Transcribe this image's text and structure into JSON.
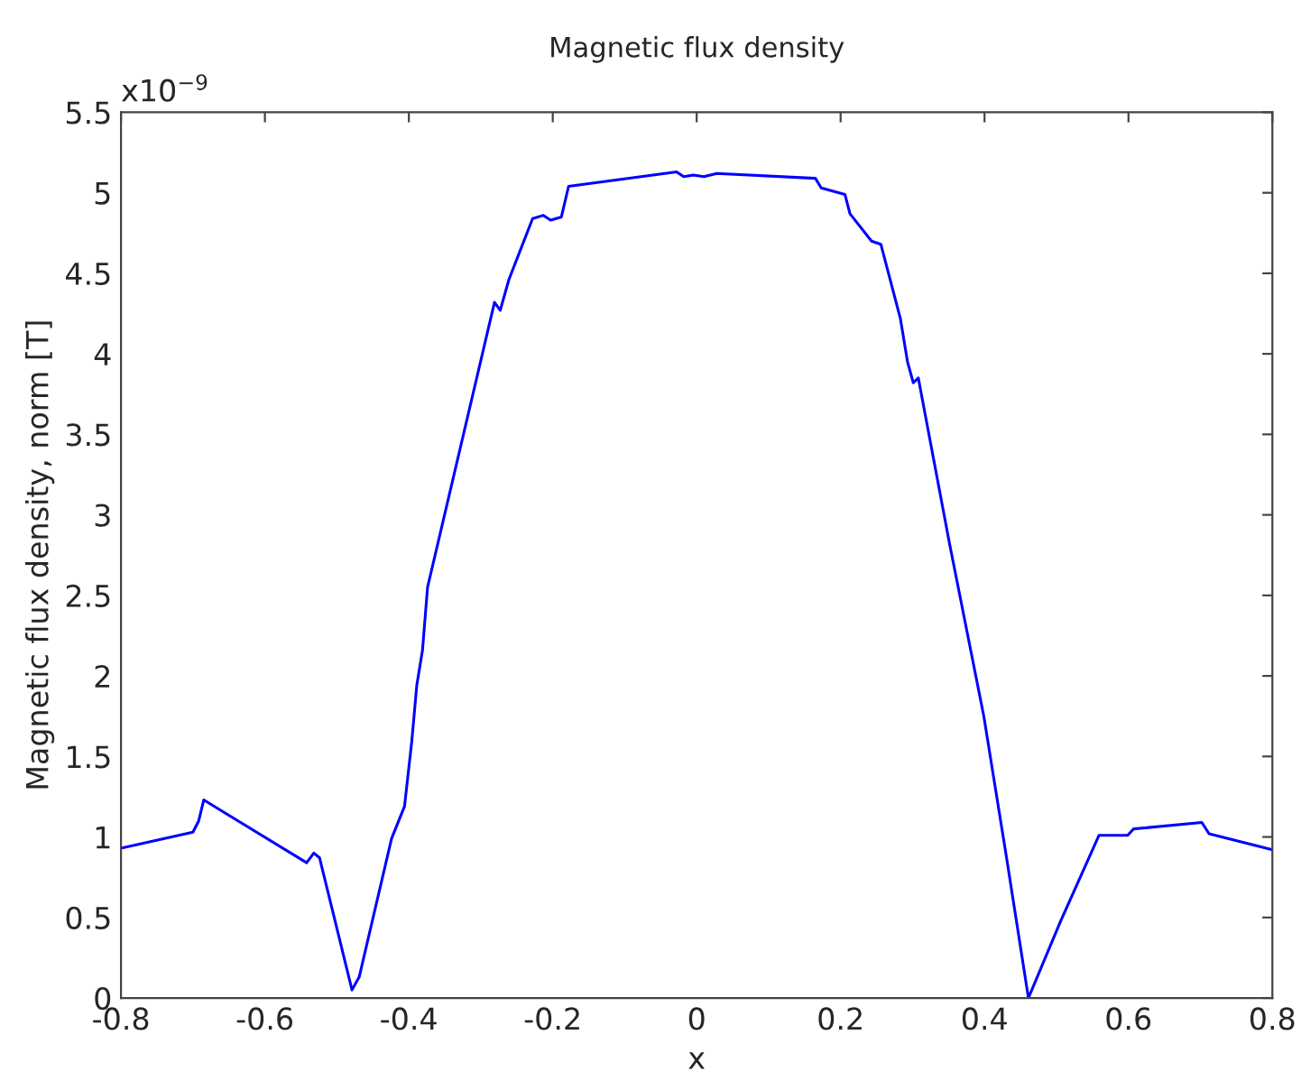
{
  "chart_data": {
    "type": "line",
    "title": "Magnetic flux density",
    "xlabel": "x",
    "ylabel": "Magnetic flux density, norm [T]",
    "annotations": [
      "x10$^{−9}$"
    ],
    "x": [
      -0.8,
      -0.7,
      -0.692,
      -0.685,
      -0.542,
      -0.532,
      -0.524,
      -0.479,
      -0.469,
      -0.424,
      -0.406,
      -0.396,
      -0.389,
      -0.381,
      -0.374,
      -0.281,
      -0.273,
      -0.261,
      -0.228,
      -0.213,
      -0.203,
      -0.188,
      -0.178,
      -0.028,
      -0.018,
      -0.005,
      0.01,
      0.028,
      0.165,
      0.173,
      0.206,
      0.213,
      0.243,
      0.256,
      0.283,
      0.293,
      0.301,
      0.308,
      0.351,
      0.399,
      0.431,
      0.461,
      0.506,
      0.522,
      0.559,
      0.599,
      0.607,
      0.702,
      0.712,
      0.8
    ],
    "series": [
      {
        "color": "#0000ff",
        "values": [
          0.93,
          1.03,
          1.1,
          1.23,
          0.84,
          0.9,
          0.87,
          0.05,
          0.13,
          0.99,
          1.19,
          1.59,
          1.94,
          2.16,
          2.55,
          4.32,
          4.27,
          4.46,
          4.84,
          4.86,
          4.83,
          4.85,
          5.04,
          5.13,
          5.1,
          5.11,
          5.1,
          5.12,
          5.09,
          5.03,
          4.99,
          4.87,
          4.7,
          4.68,
          4.22,
          3.95,
          3.82,
          3.85,
          2.83,
          1.75,
          0.86,
          0.0,
          0.48,
          0.64,
          1.01,
          1.01,
          1.05,
          1.09,
          1.02,
          0.92
        ]
      }
    ],
    "xlim": [
      -0.8,
      0.8
    ],
    "xticks": [
      -0.8,
      -0.6,
      -0.4,
      -0.2,
      0,
      0.2,
      0.4,
      0.6,
      0.8
    ],
    "ylim": [
      0,
      5.5
    ],
    "yticks": [
      0,
      0.5,
      1,
      1.5,
      2,
      2.5,
      3,
      3.5,
      4,
      4.5,
      5,
      5.5
    ],
    "grid": false,
    "legend": false,
    "line_style": "solid",
    "marker": "none"
  }
}
